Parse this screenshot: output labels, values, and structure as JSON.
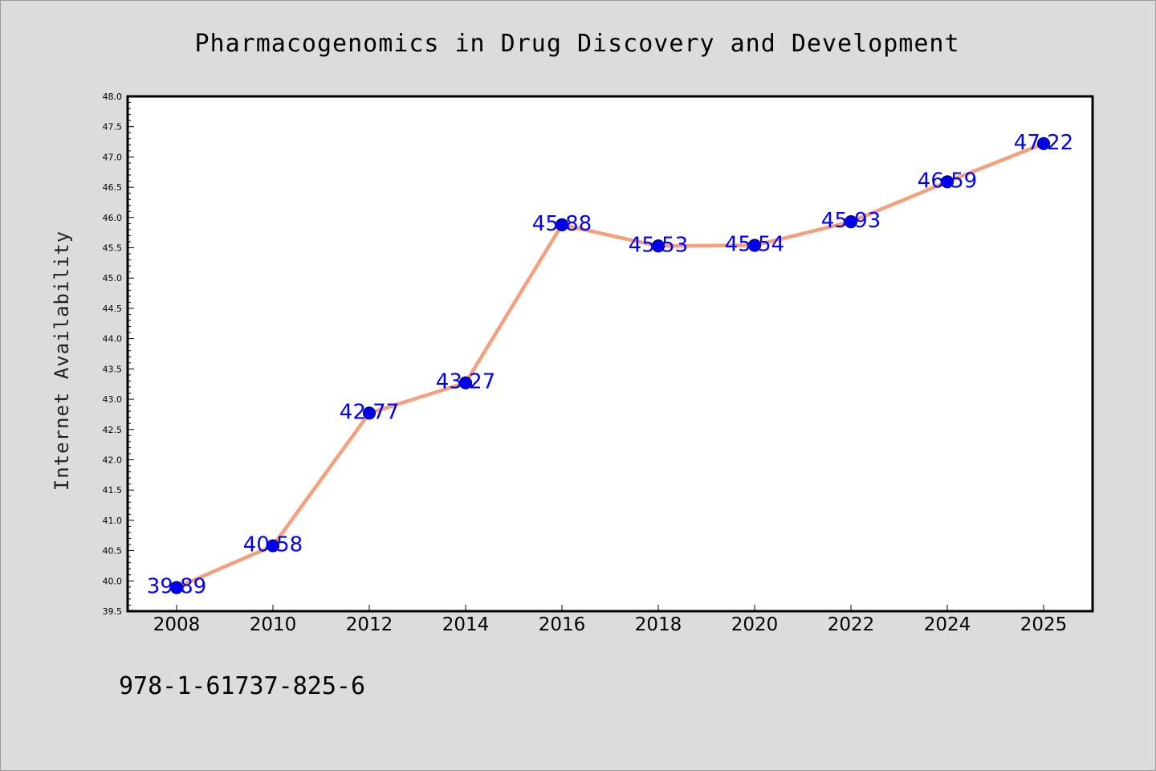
{
  "chart_data": {
    "type": "line",
    "title": "Pharmacogenomics in Drug Discovery and Development",
    "xlabel": "",
    "ylabel": "Internet Availability",
    "categories": [
      "2008",
      "2010",
      "2012",
      "2014",
      "2016",
      "2018",
      "2020",
      "2022",
      "2024",
      "2025"
    ],
    "series": [
      {
        "values": [
          39.89,
          40.58,
          42.77,
          43.27,
          45.88,
          45.53,
          45.54,
          45.93,
          46.59,
          47.22
        ],
        "data_labels": [
          "39.89",
          "40.58",
          "42.77",
          "43.27",
          "45.88",
          "45.53",
          "45.54",
          "45.93",
          "46.59",
          "47.22"
        ],
        "line_color": "#f4a07c",
        "marker_color": "#0000ee",
        "label_color": "#0000ff"
      }
    ],
    "ylim": [
      39.5,
      48.0
    ],
    "yticks": [
      "39.5",
      "40.0",
      "40.5",
      "41.0",
      "41.5",
      "42.0",
      "42.5",
      "43.0",
      "43.5",
      "44.0",
      "44.5",
      "45.0",
      "45.5",
      "46.0",
      "46.5",
      "47.0",
      "47.5",
      "48.0"
    ],
    "grid": false,
    "legend": "none"
  },
  "caption": "978-1-61737-825-6",
  "colors": {
    "background": "#dcdcdc",
    "plot_background": "#ffffff",
    "axis": "#000000"
  }
}
